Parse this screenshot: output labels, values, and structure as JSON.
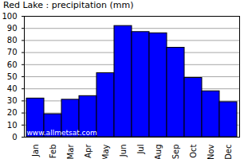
{
  "chart_data": {
    "type": "bar",
    "title": "Red Lake : precipitation (mm)",
    "categories": [
      "Jan",
      "Feb",
      "Mar",
      "Apr",
      "May",
      "Jun",
      "Jul",
      "Aug",
      "Sep",
      "Oct",
      "Nov",
      "Dec"
    ],
    "values": [
      32,
      19,
      31,
      34,
      53,
      92,
      87,
      86,
      74,
      49,
      38,
      29
    ],
    "color": "#0000ff",
    "ylim": [
      0,
      100
    ],
    "yticks": [
      0,
      10,
      20,
      30,
      40,
      50,
      60,
      70,
      80,
      90,
      100
    ],
    "grid": true,
    "annotations": [
      "www.allmetsat.com"
    ]
  }
}
